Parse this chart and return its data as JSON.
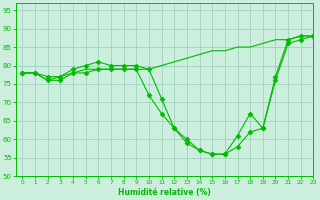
{
  "line1": {
    "x": [
      0,
      1,
      2,
      3,
      4,
      5,
      6,
      7,
      8,
      9,
      10,
      11,
      12,
      13,
      14,
      15,
      16,
      17,
      18,
      19,
      20,
      21,
      22,
      23
    ],
    "y": [
      78,
      78,
      77,
      77,
      79,
      80,
      81,
      80,
      80,
      80,
      79,
      71,
      63,
      59,
      57,
      56,
      56,
      61,
      67,
      63,
      77,
      87,
      88,
      88
    ],
    "has_markers": true
  },
  "line2": {
    "x": [
      0,
      1,
      2,
      3,
      4,
      5,
      6,
      7,
      8,
      9,
      10,
      11,
      12,
      13,
      14,
      15,
      16,
      17,
      18,
      19,
      20,
      21,
      22,
      23
    ],
    "y": [
      78,
      78,
      76,
      77,
      78,
      79,
      79,
      79,
      79,
      79,
      79,
      80,
      81,
      82,
      83,
      84,
      84,
      85,
      85,
      86,
      87,
      87,
      88,
      88
    ],
    "has_markers": false
  },
  "line3": {
    "x": [
      0,
      1,
      2,
      3,
      4,
      5,
      6,
      7,
      8,
      9,
      10,
      11,
      12,
      13,
      14,
      15,
      16,
      17,
      18,
      19,
      20,
      21,
      22,
      23
    ],
    "y": [
      78,
      78,
      76,
      76,
      78,
      78,
      79,
      79,
      79,
      79,
      72,
      67,
      63,
      60,
      57,
      56,
      56,
      58,
      62,
      63,
      76,
      86,
      87,
      88
    ],
    "has_markers": true
  },
  "color": "#00bb00",
  "bg_color": "#cceedd",
  "grid_color": "#99ccbb",
  "xlabel": "Humidité relative (%)",
  "ylim": [
    50,
    97
  ],
  "xlim": [
    -0.5,
    23
  ],
  "yticks": [
    50,
    55,
    60,
    65,
    70,
    75,
    80,
    85,
    90,
    95
  ],
  "xticks": [
    0,
    1,
    2,
    3,
    4,
    5,
    6,
    7,
    8,
    9,
    10,
    11,
    12,
    13,
    14,
    15,
    16,
    17,
    18,
    19,
    20,
    21,
    22,
    23
  ]
}
